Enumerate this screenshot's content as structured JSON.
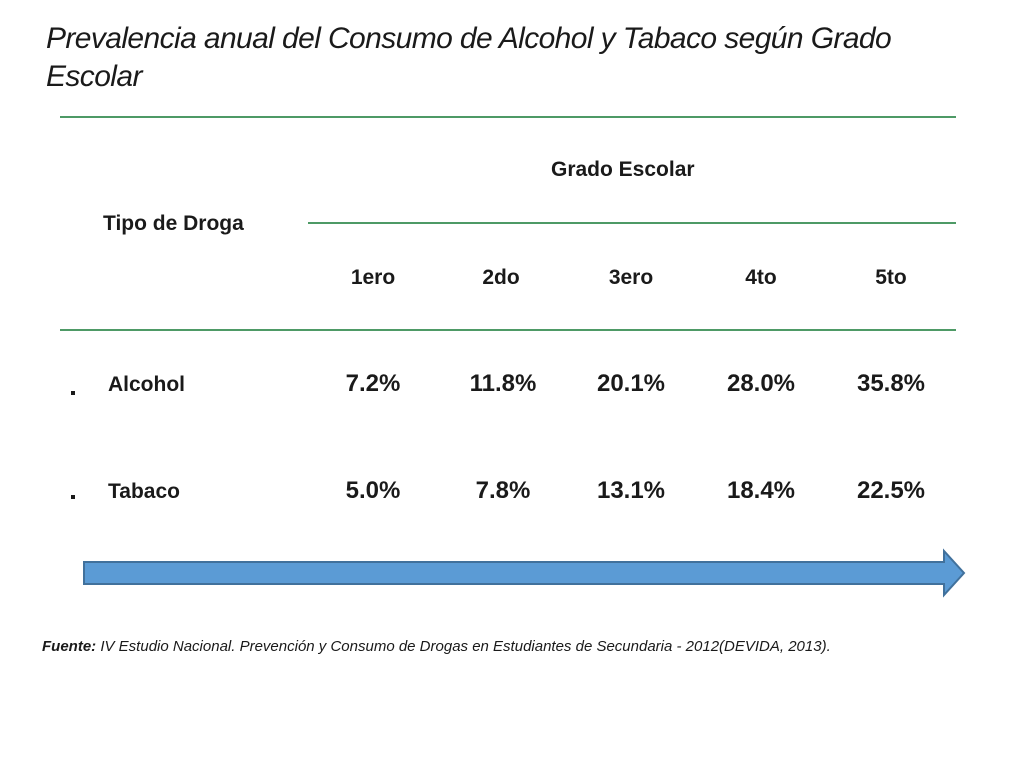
{
  "title": "Prevalencia anual del Consumo de Alcohol y Tabaco según Grado Escolar",
  "table": {
    "row_header": "Tipo de Droga",
    "group_header": "Grado Escolar",
    "columns": [
      "1ero",
      "2do",
      "3ero",
      "4to",
      "5to"
    ],
    "rows": [
      {
        "label": "Alcohol",
        "values": [
          "7.2%",
          "11.8%",
          "20.1%",
          "28.0%",
          "35.8%"
        ]
      },
      {
        "label": "Tabaco",
        "values": [
          "5.0%",
          "7.8%",
          "13.1%",
          "18.4%",
          "22.5%"
        ]
      }
    ]
  },
  "source": {
    "label": "Fuente:",
    "text": " IV Estudio Nacional. Prevención y Consumo de Drogas en Estudiantes de Secundaria - 2012(DEVIDA, 2013)."
  },
  "colors": {
    "rule": "#4e9a66",
    "arrow_fill": "#5b9bd5",
    "arrow_stroke": "#41719c"
  },
  "icons": {
    "arrow": "right-arrow-icon",
    "bullet": "square-bullet-icon"
  }
}
